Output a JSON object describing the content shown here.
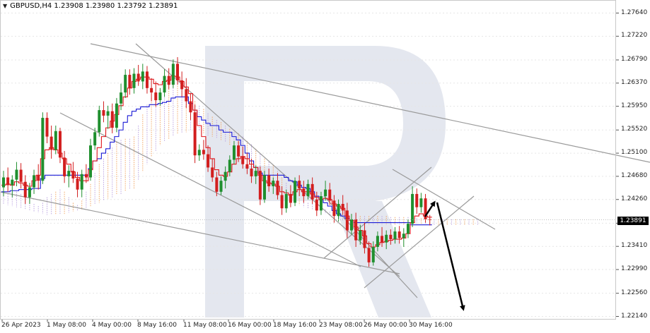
{
  "header": {
    "symbol_text": "GBPUSD,H4  1.23908 1.23980 1.23792 1.23891",
    "arrow_icon": "triangle-down-icon"
  },
  "current_price": "1.23891",
  "colors": {
    "bull": "#1f8f2e",
    "bear": "#d21e1e",
    "tenkan": "#e0151b",
    "kijun": "#1a1ad6",
    "cloud_a": "#f2a35e",
    "cloud_b": "#b9a0e0",
    "trendline": "#9a9a9a",
    "forecast": "#000000",
    "watermark": "#e4e7ef"
  },
  "chart_data": {
    "type": "candlestick",
    "symbol": "GBPUSD",
    "timeframe": "H4",
    "ylim": [
      1.2214,
      1.2764
    ],
    "y_ticks": [
      "1.27640",
      "1.27220",
      "1.26790",
      "1.26370",
      "1.25950",
      "1.25520",
      "1.25100",
      "1.24680",
      "1.24260",
      "1.23830",
      "1.23410",
      "1.22990",
      "1.22560",
      "1.22140"
    ],
    "x_ticks": [
      "26 Apr 2023",
      "1 May 08:00",
      "4 May 00:00",
      "8 May 16:00",
      "11 May 08:00",
      "16 May 00:00",
      "18 May 16:00",
      "23 May 08:00",
      "26 May 00:00",
      "30 May 16:00"
    ],
    "candles_ohlc": [
      [
        1.2448,
        1.2478,
        1.2432,
        1.2466
      ],
      [
        1.2466,
        1.2484,
        1.244,
        1.2452
      ],
      [
        1.2452,
        1.247,
        1.243,
        1.2462
      ],
      [
        1.2462,
        1.2494,
        1.245,
        1.248
      ],
      [
        1.248,
        1.2492,
        1.2446,
        1.2458
      ],
      [
        1.2458,
        1.247,
        1.2418,
        1.243
      ],
      [
        1.243,
        1.2456,
        1.2418,
        1.2448
      ],
      [
        1.2448,
        1.248,
        1.2436,
        1.247
      ],
      [
        1.247,
        1.249,
        1.2444,
        1.246
      ],
      [
        1.246,
        1.2584,
        1.2454,
        1.2574
      ],
      [
        1.2574,
        1.2584,
        1.2528,
        1.254
      ],
      [
        1.254,
        1.256,
        1.25,
        1.2516
      ],
      [
        1.2516,
        1.256,
        1.2508,
        1.255
      ],
      [
        1.255,
        1.2556,
        1.2492,
        1.2502
      ],
      [
        1.2502,
        1.2514,
        1.2456,
        1.2468
      ],
      [
        1.2468,
        1.2488,
        1.2448,
        1.2478
      ],
      [
        1.2478,
        1.2494,
        1.2456,
        1.2464
      ],
      [
        1.2464,
        1.2476,
        1.243,
        1.2444
      ],
      [
        1.2444,
        1.248,
        1.243,
        1.2472
      ],
      [
        1.2472,
        1.249,
        1.2456,
        1.2466
      ],
      [
        1.2466,
        1.2536,
        1.246,
        1.2524
      ],
      [
        1.2524,
        1.2556,
        1.2516,
        1.2548
      ],
      [
        1.2548,
        1.2596,
        1.254,
        1.2588
      ],
      [
        1.2588,
        1.2604,
        1.2566,
        1.2578
      ],
      [
        1.2578,
        1.2596,
        1.2554,
        1.2586
      ],
      [
        1.2586,
        1.26,
        1.2546,
        1.2556
      ],
      [
        1.2556,
        1.261,
        1.2548,
        1.26
      ],
      [
        1.26,
        1.2636,
        1.2588,
        1.262
      ],
      [
        1.262,
        1.2662,
        1.261,
        1.2652
      ],
      [
        1.2652,
        1.2662,
        1.2616,
        1.2628
      ],
      [
        1.2628,
        1.2664,
        1.2618,
        1.2654
      ],
      [
        1.2654,
        1.267,
        1.2632,
        1.264
      ],
      [
        1.264,
        1.2672,
        1.2626,
        1.2658
      ],
      [
        1.2658,
        1.2668,
        1.2618,
        1.2628
      ],
      [
        1.2628,
        1.2646,
        1.2604,
        1.262
      ],
      [
        1.262,
        1.264,
        1.2594,
        1.2606
      ],
      [
        1.2606,
        1.2628,
        1.2596,
        1.262
      ],
      [
        1.262,
        1.2662,
        1.2612,
        1.265
      ],
      [
        1.265,
        1.2664,
        1.2626,
        1.2634
      ],
      [
        1.2634,
        1.268,
        1.2628,
        1.2672
      ],
      [
        1.2672,
        1.2684,
        1.2634,
        1.2642
      ],
      [
        1.2642,
        1.2658,
        1.2612,
        1.2626
      ],
      [
        1.2626,
        1.2646,
        1.2592,
        1.2604
      ],
      [
        1.2604,
        1.2618,
        1.257,
        1.2584
      ],
      [
        1.2584,
        1.2598,
        1.2492,
        1.2506
      ],
      [
        1.2506,
        1.2526,
        1.2496,
        1.2516
      ],
      [
        1.2516,
        1.2534,
        1.2498,
        1.2508
      ],
      [
        1.2508,
        1.2524,
        1.2476,
        1.2484
      ],
      [
        1.2484,
        1.25,
        1.2458,
        1.2466
      ],
      [
        1.2466,
        1.2476,
        1.2432,
        1.244
      ],
      [
        1.244,
        1.2468,
        1.2434,
        1.246
      ],
      [
        1.246,
        1.2486,
        1.2446,
        1.2476
      ],
      [
        1.2476,
        1.2506,
        1.2468,
        1.2498
      ],
      [
        1.2498,
        1.2532,
        1.249,
        1.2524
      ],
      [
        1.2524,
        1.2532,
        1.2494,
        1.2504
      ],
      [
        1.2504,
        1.2522,
        1.2482,
        1.249
      ],
      [
        1.249,
        1.251,
        1.2472,
        1.2482
      ],
      [
        1.2482,
        1.25,
        1.2456,
        1.2468
      ],
      [
        1.2468,
        1.2488,
        1.2454,
        1.2478
      ],
      [
        1.2478,
        1.2486,
        1.2416,
        1.2426
      ],
      [
        1.2426,
        1.2478,
        1.242,
        1.247
      ],
      [
        1.247,
        1.2482,
        1.244,
        1.245
      ],
      [
        1.245,
        1.2466,
        1.2436,
        1.246
      ],
      [
        1.246,
        1.2474,
        1.2426,
        1.2434
      ],
      [
        1.2434,
        1.245,
        1.2398,
        1.241
      ],
      [
        1.241,
        1.2444,
        1.2402,
        1.2436
      ],
      [
        1.2436,
        1.2452,
        1.2412,
        1.242
      ],
      [
        1.242,
        1.2466,
        1.2414,
        1.246
      ],
      [
        1.246,
        1.247,
        1.2432,
        1.2446
      ],
      [
        1.2446,
        1.246,
        1.242,
        1.2432
      ],
      [
        1.2432,
        1.2462,
        1.2426,
        1.2454
      ],
      [
        1.2454,
        1.2466,
        1.2418,
        1.2426
      ],
      [
        1.2426,
        1.244,
        1.2396,
        1.2406
      ],
      [
        1.2406,
        1.244,
        1.2398,
        1.2432
      ],
      [
        1.2432,
        1.246,
        1.2424,
        1.2444
      ],
      [
        1.2444,
        1.2456,
        1.2416,
        1.2424
      ],
      [
        1.2424,
        1.2434,
        1.2384,
        1.2396
      ],
      [
        1.2396,
        1.2426,
        1.2386,
        1.2418
      ],
      [
        1.2418,
        1.2434,
        1.2398,
        1.2406
      ],
      [
        1.2406,
        1.242,
        1.2356,
        1.237
      ],
      [
        1.237,
        1.24,
        1.2362,
        1.239
      ],
      [
        1.239,
        1.2402,
        1.234,
        1.2352
      ],
      [
        1.2352,
        1.238,
        1.2344,
        1.237
      ],
      [
        1.237,
        1.2384,
        1.2328,
        1.2338
      ],
      [
        1.2338,
        1.235,
        1.2304,
        1.2312
      ],
      [
        1.2312,
        1.235,
        1.2306,
        1.234
      ],
      [
        1.234,
        1.2368,
        1.2332,
        1.236
      ],
      [
        1.236,
        1.2376,
        1.234,
        1.2348
      ],
      [
        1.2348,
        1.237,
        1.2336,
        1.2362
      ],
      [
        1.2362,
        1.2372,
        1.2344,
        1.2354
      ],
      [
        1.2354,
        1.2376,
        1.2346,
        1.2368
      ],
      [
        1.2368,
        1.2378,
        1.2346,
        1.2356
      ],
      [
        1.2356,
        1.2374,
        1.234,
        1.2364
      ],
      [
        1.2364,
        1.239,
        1.2356,
        1.2382
      ],
      [
        1.2382,
        1.245,
        1.2376,
        1.2436
      ],
      [
        1.2436,
        1.2446,
        1.24,
        1.2412
      ],
      [
        1.2412,
        1.2438,
        1.2402,
        1.2428
      ],
      [
        1.2428,
        1.2436,
        1.2384,
        1.239
      ],
      [
        1.239,
        1.2398,
        1.2379,
        1.2389
      ]
    ],
    "tenkan_sen": [
      1.2452,
      1.2454,
      1.2452,
      1.2458,
      1.2456,
      1.2452,
      1.245,
      1.246,
      1.247,
      1.25,
      1.2516,
      1.252,
      1.2516,
      1.251,
      1.25,
      1.249,
      1.2476,
      1.2466,
      1.246,
      1.246,
      1.248,
      1.2496,
      1.252,
      1.254,
      1.2556,
      1.2568,
      1.258,
      1.2596,
      1.2612,
      1.2628,
      1.264,
      1.2644,
      1.2648,
      1.2648,
      1.2644,
      1.2636,
      1.2634,
      1.264,
      1.2642,
      1.265,
      1.2648,
      1.264,
      1.263,
      1.2618,
      1.2588,
      1.256,
      1.254,
      1.252,
      1.25,
      1.248,
      1.247,
      1.2468,
      1.2476,
      1.249,
      1.25,
      1.2504,
      1.25,
      1.249,
      1.2484,
      1.247,
      1.246,
      1.2456,
      1.2454,
      1.245,
      1.244,
      1.2438,
      1.2434,
      1.244,
      1.2444,
      1.244,
      1.244,
      1.2436,
      1.243,
      1.2426,
      1.2428,
      1.2426,
      1.2418,
      1.2414,
      1.241,
      1.2396,
      1.2388,
      1.2376,
      1.237,
      1.236,
      1.2346,
      1.234,
      1.2344,
      1.2348,
      1.235,
      1.2352,
      1.2354,
      1.2354,
      1.2356,
      1.2364,
      1.2384,
      1.2396,
      1.24,
      1.2396,
      1.2394
    ],
    "kijun_sen": [
      1.244,
      1.244,
      1.2442,
      1.2442,
      1.2444,
      1.2444,
      1.2444,
      1.2446,
      1.2446,
      1.2464,
      1.247,
      1.247,
      1.247,
      1.247,
      1.247,
      1.247,
      1.247,
      1.247,
      1.247,
      1.247,
      1.2482,
      1.2496,
      1.25,
      1.251,
      1.2518,
      1.253,
      1.254,
      1.2552,
      1.2566,
      1.2578,
      1.2586,
      1.259,
      1.2594,
      1.2594,
      1.2598,
      1.2598,
      1.26,
      1.2602,
      1.2604,
      1.261,
      1.2612,
      1.2612,
      1.2612,
      1.26,
      1.2588,
      1.2576,
      1.257,
      1.2564,
      1.256,
      1.256,
      1.2552,
      1.2548,
      1.2548,
      1.254,
      1.2534,
      1.2524,
      1.251,
      1.2496,
      1.2484,
      1.2474,
      1.247,
      1.247,
      1.247,
      1.247,
      1.247,
      1.2466,
      1.246,
      1.2458,
      1.2452,
      1.2448,
      1.2446,
      1.244,
      1.2432,
      1.2426,
      1.242,
      1.2414,
      1.2406,
      1.24,
      1.2396,
      1.2392,
      1.2388,
      1.2384,
      1.2384,
      1.2384,
      1.2384,
      1.2384,
      1.2384,
      1.2384,
      1.2384,
      1.2384,
      1.2384,
      1.2384,
      1.2384,
      1.2384,
      1.238,
      1.238,
      1.238,
      1.238,
      1.238
    ],
    "cloud_top": [
      1.2432,
      1.2436,
      1.2438,
      1.244,
      1.2436,
      1.243,
      1.2424,
      1.2418,
      1.2414,
      1.242,
      1.243,
      1.2436,
      1.244,
      1.2444,
      1.244,
      1.243,
      1.242,
      1.2416,
      1.2424,
      1.244,
      1.2454,
      1.2474,
      1.249,
      1.25,
      1.251,
      1.252,
      1.253,
      1.2534,
      1.2536,
      1.2536,
      1.254,
      1.256,
      1.258,
      1.2598,
      1.261,
      1.262,
      1.2628,
      1.2634,
      1.2638,
      1.264,
      1.2636,
      1.263,
      1.2622,
      1.2612,
      1.2604,
      1.2596,
      1.259,
      1.2582,
      1.2576,
      1.257,
      1.2566,
      1.256,
      1.2554,
      1.2548,
      1.2546,
      1.254,
      1.2532,
      1.2526,
      1.2518,
      1.2508,
      1.25,
      1.2494,
      1.2488,
      1.2478,
      1.2466,
      1.2456,
      1.2444,
      1.2434,
      1.2428,
      1.2424,
      1.242,
      1.2418,
      1.2414,
      1.2412,
      1.2408,
      1.2404,
      1.2402,
      1.24,
      1.24,
      1.24,
      1.24,
      1.2398,
      1.2396,
      1.2396,
      1.2396,
      1.2396,
      1.2396,
      1.2396,
      1.2396,
      1.2394,
      1.2394,
      1.2394,
      1.2394,
      1.2394,
      1.2392,
      1.2392,
      1.2392,
      1.2392,
      1.2392,
      1.239,
      1.239,
      1.239,
      1.239,
      1.239,
      1.239,
      1.239,
      1.239,
      1.239,
      1.239,
      1.239
    ],
    "cloud_bottom": [
      1.2418,
      1.2416,
      1.2414,
      1.2412,
      1.241,
      1.2408,
      1.2406,
      1.2404,
      1.2402,
      1.24,
      1.2398,
      1.2398,
      1.2398,
      1.2398,
      1.24,
      1.2402,
      1.2404,
      1.2406,
      1.2408,
      1.241,
      1.2414,
      1.2418,
      1.242,
      1.2424,
      1.2428,
      1.243,
      1.2434,
      1.2436,
      1.244,
      1.2444,
      1.2446,
      1.246,
      1.2476,
      1.249,
      1.2504,
      1.2514,
      1.2524,
      1.2532,
      1.2536,
      1.254,
      1.2544,
      1.2546,
      1.2548,
      1.255,
      1.255,
      1.255,
      1.2546,
      1.2542,
      1.254,
      1.2538,
      1.2534,
      1.253,
      1.2524,
      1.2518,
      1.251,
      1.25,
      1.249,
      1.248,
      1.2474,
      1.247,
      1.2464,
      1.2458,
      1.2452,
      1.2446,
      1.244,
      1.2432,
      1.2426,
      1.242,
      1.2416,
      1.2412,
      1.241,
      1.2408,
      1.2406,
      1.2404,
      1.24,
      1.2398,
      1.2396,
      1.2392,
      1.2388,
      1.2386,
      1.2384,
      1.2382,
      1.238,
      1.238,
      1.238,
      1.238,
      1.238,
      1.238,
      1.238,
      1.238,
      1.238,
      1.238,
      1.238,
      1.238,
      1.238,
      1.238,
      1.238,
      1.238,
      1.238,
      1.238,
      1.238,
      1.238,
      1.238,
      1.238,
      1.238,
      1.238,
      1.238,
      1.238,
      1.238,
      1.238
    ]
  }
}
